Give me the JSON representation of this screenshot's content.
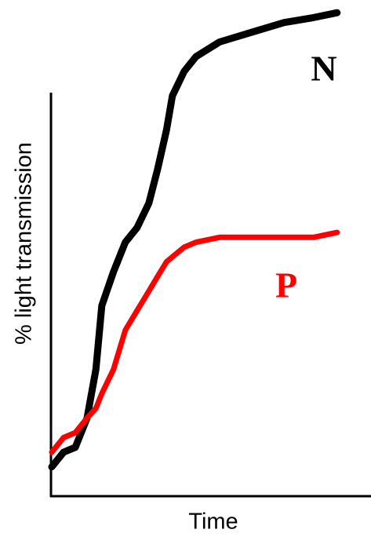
{
  "chart_data": {
    "type": "line",
    "x_label": "Time",
    "y_label": "% light transmission",
    "x": [
      0,
      4,
      8,
      12,
      15,
      17,
      21,
      25,
      29,
      33,
      36,
      39,
      41,
      45,
      49,
      57,
      68,
      79,
      89,
      97
    ],
    "series": [
      {
        "name": "N",
        "color": "#000000",
        "values": [
          6,
          9,
          10,
          16,
          26,
          39,
          46,
          52,
          55,
          60,
          67,
          75,
          82,
          87,
          90,
          93,
          95,
          97,
          98,
          99
        ]
      },
      {
        "name": "P",
        "color": "#ff0000",
        "values": [
          9,
          12,
          13,
          16,
          18,
          21,
          26,
          34,
          38,
          42,
          45,
          48,
          49,
          51,
          52,
          53,
          53,
          53,
          53,
          54
        ]
      }
    ],
    "xlim": [
      0,
      100
    ],
    "ylim": [
      0,
      100
    ]
  }
}
